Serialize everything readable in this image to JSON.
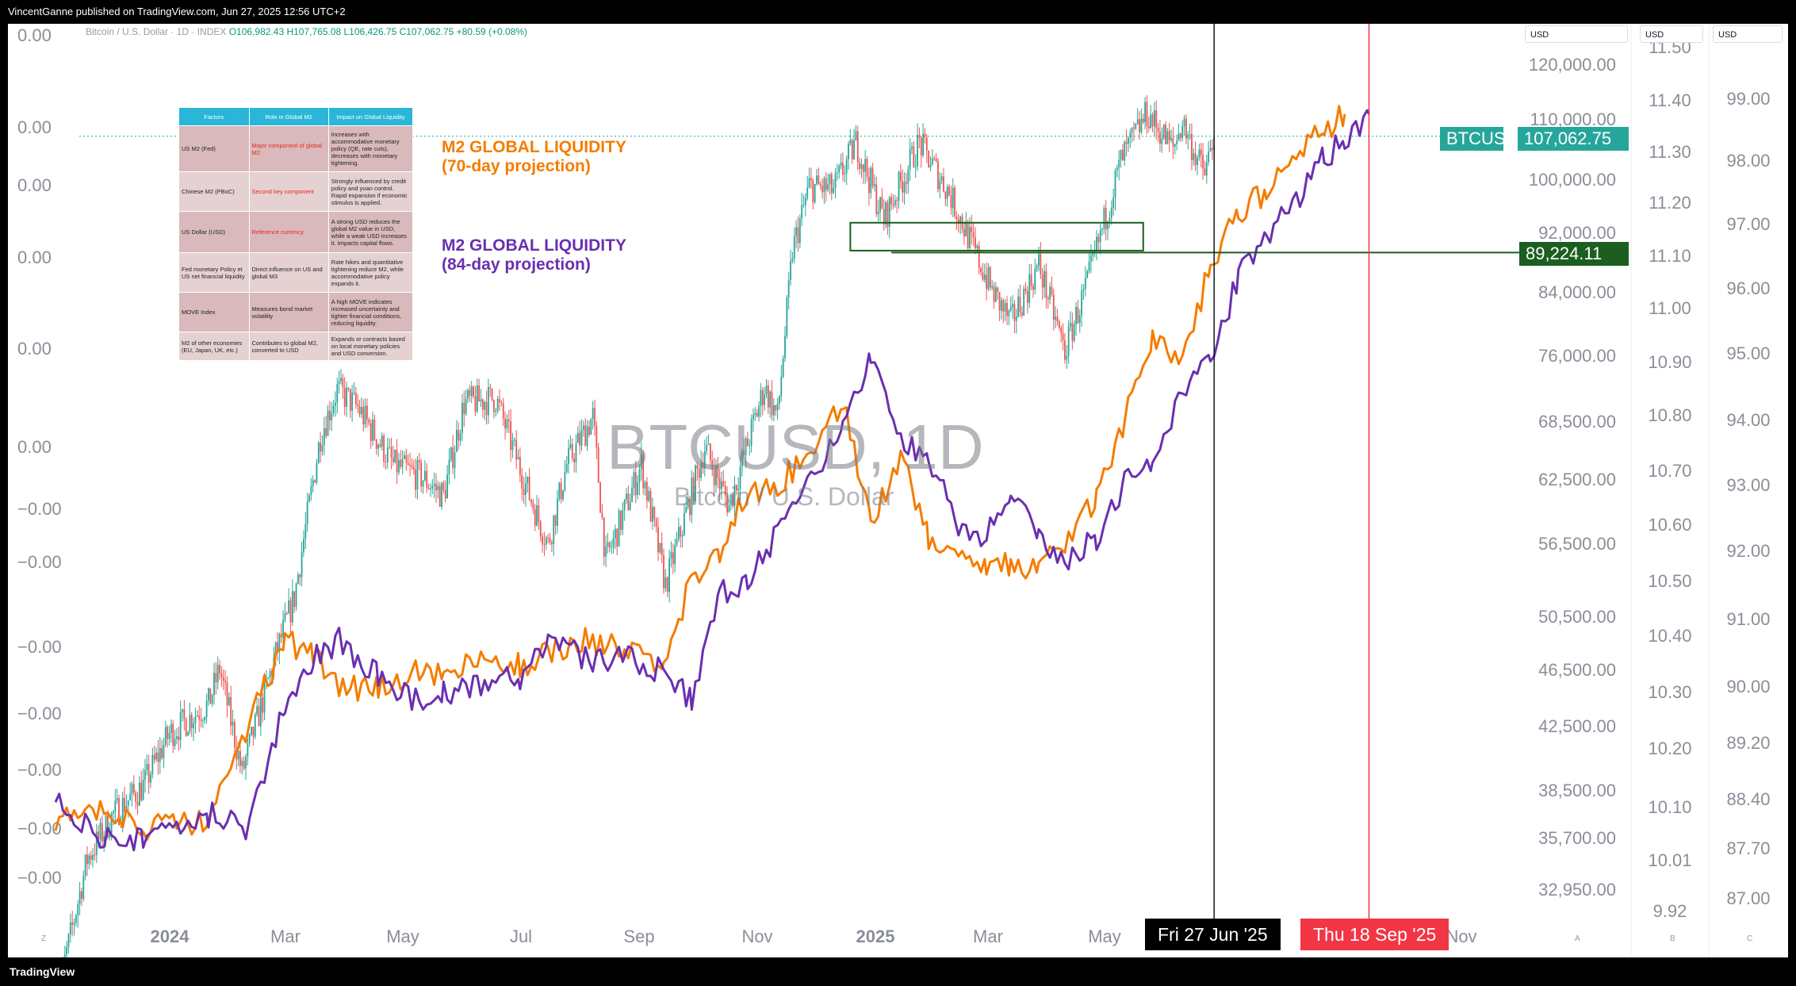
{
  "publisher": "VincentGanne published on TradingView.com, Jun 27, 2025 12:56 UTC+2",
  "footer_brand": "TradingView",
  "legend": {
    "symbol": "Bitcoin / U.S. Dollar · 1D · INDEX",
    "ohlc": "O106,982.43 H107,765.08 L106,426.75 C107,062.75 +80.59 (+0.08%)"
  },
  "watermark": {
    "symbol": "BTCUSD, 1D",
    "name": "Bitcoin / U.S. Dollar"
  },
  "currency_tabs": [
    "USD",
    "USD",
    "USD"
  ],
  "annotations": {
    "m2_70": "M2 GLOBAL LIQUIDITY\n(70-day projection)",
    "m2_84": "M2 GLOBAL LIQUIDITY\n(84-day projection)"
  },
  "table": {
    "headers": [
      "Factors",
      "Role in Global M2",
      "Impact on Global Liquidity"
    ],
    "rows": [
      [
        "US M2 (Fed)",
        "Major component of global M2",
        "Increases with accommodative monetary policy (QE, rate cuts), decreases with monetary tightening."
      ],
      [
        "Chinese M2 (PBoC)",
        "Second key component",
        "Strongly influenced by credit policy and yuan control. Rapid expansion if economic stimulus is applied."
      ],
      [
        "US Dollar (USD)",
        "Reference currency",
        "A strong USD reduces the global M2 value in USD, while a weak USD increases it. Impacts capital flows."
      ],
      [
        "Fed  monetary Policy et US net financial liquidity",
        "Direct influence on US and global M3",
        "Rate hikes and quantitative tightening reduce M2, while accommodative policy expands it."
      ],
      [
        "MOVE Index",
        "Measures bond market volatility",
        "A high MOVE indicates increased uncertainty and tighter financial conditions, reducing liquidity."
      ],
      [
        "M2 of other economies (EU, Japan, UK, etc.)",
        "Contributes to global M2, converted to USD",
        "Expands or contracts based on local monetary policies and USD conversion."
      ]
    ]
  },
  "price_labels": {
    "symbol": "BTCUSD",
    "last": "107,062.75",
    "level": "89,224.11"
  },
  "date_labels": {
    "cursor": "Fri 27 Jun '25",
    "target": "Thu 18 Sep '25"
  },
  "bottom_letters": [
    "Z",
    "A",
    "B",
    "C"
  ],
  "colors": {
    "up": "#26a69a",
    "down": "#ef5350",
    "m2_70": "#f57c00",
    "m2_84": "#6a2fb0",
    "zone": "#1b5e20",
    "label_green": "#26a69a",
    "target_red": "#f23645"
  },
  "chart_data": {
    "type": "line",
    "x_ticks": [
      "2024",
      "Mar",
      "May",
      "Jul",
      "Sep",
      "Nov",
      "2025",
      "Mar",
      "May",
      "Nov"
    ],
    "axes": {
      "left_ticks": [
        "0.00",
        "0.00",
        "0.00",
        "0.00",
        "0.00",
        "0.00",
        "−0.00",
        "−0.00",
        "−0.00",
        "−0.00",
        "−0.00",
        "−0.00",
        "−0.00"
      ],
      "price_ticks": [
        "120,000.00",
        "110,000.00",
        "100,000.00",
        "92,000.00",
        "84,000.00",
        "76,000.00",
        "68,500.00",
        "62,500.00",
        "56,500.00",
        "50,500.00",
        "46,500.00",
        "42,500.00",
        "38,500.00",
        "35,700.00",
        "32,950.00"
      ],
      "m2a_ticks": [
        "11.50",
        "11.40",
        "11.30",
        "11.20",
        "11.10",
        "11.00",
        "10.90",
        "10.80",
        "10.70",
        "10.60",
        "10.50",
        "10.40",
        "10.30",
        "10.20",
        "10.10",
        "10.01",
        "9.92"
      ],
      "m2b_ticks": [
        "99.00",
        "98.00",
        "97.00",
        "96.00",
        "95.00",
        "94.00",
        "93.00",
        "92.00",
        "91.00",
        "90.00",
        "89.20",
        "88.40",
        "87.70",
        "87.00"
      ],
      "price_scale": "log"
    },
    "horizontal_level": 89224.11,
    "zone": {
      "from": "2024-12-14",
      "to": "2025-05-20",
      "low": 89500,
      "high": 93500
    },
    "series": [
      {
        "name": "BTCUSD",
        "dates": [
          "2023-10-15",
          "2023-11-01",
          "2023-11-15",
          "2023-12-01",
          "2023-12-15",
          "2024-01-05",
          "2024-01-11",
          "2024-01-23",
          "2024-02-10",
          "2024-02-20",
          "2024-03-05",
          "2024-03-14",
          "2024-03-25",
          "2024-04-13",
          "2024-04-28",
          "2024-05-10",
          "2024-05-21",
          "2024-06-07",
          "2024-06-25",
          "2024-07-05",
          "2024-07-15",
          "2024-07-29",
          "2024-08-05",
          "2024-08-24",
          "2024-09-06",
          "2024-09-27",
          "2024-10-10",
          "2024-10-29",
          "2024-11-05",
          "2024-11-13",
          "2024-11-22",
          "2024-12-05",
          "2024-12-17",
          "2025-01-01",
          "2025-01-20",
          "2025-02-05",
          "2025-02-28",
          "2025-03-10",
          "2025-03-25",
          "2025-04-08",
          "2025-04-20",
          "2025-05-08",
          "2025-05-22",
          "2025-06-05",
          "2025-06-10",
          "2025-06-17",
          "2025-06-22",
          "2025-06-27"
        ],
        "values": [
          27500,
          34500,
          37000,
          38700,
          42000,
          44000,
          46500,
          39500,
          47500,
          52000,
          67000,
          72000,
          70000,
          64000,
          62800,
          61000,
          70500,
          71000,
          61000,
          56500,
          64000,
          69000,
          55000,
          64000,
          53000,
          65800,
          60000,
          72300,
          69000,
          89500,
          99000,
          98500,
          106000,
          94000,
          106000,
          98000,
          84000,
          80000,
          87500,
          76500,
          85000,
          103000,
          111000,
          105000,
          109500,
          104000,
          101000,
          107062.75
        ]
      },
      {
        "name": "M2 GLOBAL LIQUIDITY (70-day projection)",
        "dates": [
          "2023-10-15",
          "2023-11-10",
          "2023-12-01",
          "2024-01-05",
          "2024-01-25",
          "2024-02-15",
          "2024-03-01",
          "2024-03-15",
          "2024-04-05",
          "2024-04-25",
          "2024-05-10",
          "2024-05-30",
          "2024-06-20",
          "2024-07-05",
          "2024-07-25",
          "2024-08-15",
          "2024-09-05",
          "2024-09-20",
          "2024-10-05",
          "2024-10-20",
          "2024-11-05",
          "2024-11-25",
          "2024-12-10",
          "2024-12-25",
          "2025-01-10",
          "2025-01-25",
          "2025-02-10",
          "2025-02-25",
          "2025-03-10",
          "2025-03-25",
          "2025-04-10",
          "2025-04-25",
          "2025-05-10",
          "2025-05-25",
          "2025-06-10",
          "2025-06-25",
          "2025-07-10",
          "2025-07-25",
          "2025-08-10",
          "2025-08-25",
          "2025-09-05"
        ],
        "values": [
          10.08,
          10.12,
          10.07,
          10.09,
          10.25,
          10.42,
          10.39,
          10.33,
          10.33,
          10.36,
          10.35,
          10.38,
          10.37,
          10.39,
          10.42,
          10.4,
          10.37,
          10.53,
          10.58,
          10.69,
          10.7,
          10.77,
          10.85,
          10.63,
          10.76,
          10.6,
          10.58,
          10.55,
          10.56,
          10.55,
          10.6,
          10.68,
          10.82,
          10.96,
          10.93,
          11.1,
          11.2,
          11.24,
          11.3,
          11.35,
          11.38
        ]
      },
      {
        "name": "M2 GLOBAL LIQUIDITY (84-day projection)",
        "dates": [
          "2023-10-15",
          "2023-11-10",
          "2023-12-01",
          "2024-01-05",
          "2024-01-25",
          "2024-02-15",
          "2024-03-01",
          "2024-03-15",
          "2024-04-05",
          "2024-04-25",
          "2024-05-10",
          "2024-05-30",
          "2024-06-20",
          "2024-07-05",
          "2024-07-25",
          "2024-08-15",
          "2024-09-05",
          "2024-09-20",
          "2024-10-05",
          "2024-10-20",
          "2024-11-05",
          "2024-11-25",
          "2024-12-10",
          "2024-12-25",
          "2025-01-10",
          "2025-01-25",
          "2025-02-10",
          "2025-02-25",
          "2025-03-10",
          "2025-03-25",
          "2025-04-10",
          "2025-04-25",
          "2025-05-10",
          "2025-05-25",
          "2025-06-10",
          "2025-06-25",
          "2025-07-10",
          "2025-07-25",
          "2025-08-10",
          "2025-08-25",
          "2025-09-05",
          "2025-09-18"
        ],
        "values": [
          10.12,
          10.05,
          10.06,
          10.1,
          10.07,
          10.3,
          10.38,
          10.42,
          10.35,
          10.31,
          10.32,
          10.34,
          10.35,
          10.42,
          10.38,
          10.39,
          10.36,
          10.31,
          10.5,
          10.52,
          10.62,
          10.73,
          10.8,
          10.93,
          10.78,
          10.75,
          10.63,
          10.61,
          10.69,
          10.6,
          10.57,
          10.6,
          10.71,
          10.75,
          10.87,
          10.93,
          11.08,
          11.15,
          11.22,
          11.3,
          11.33,
          11.38
        ]
      }
    ]
  }
}
